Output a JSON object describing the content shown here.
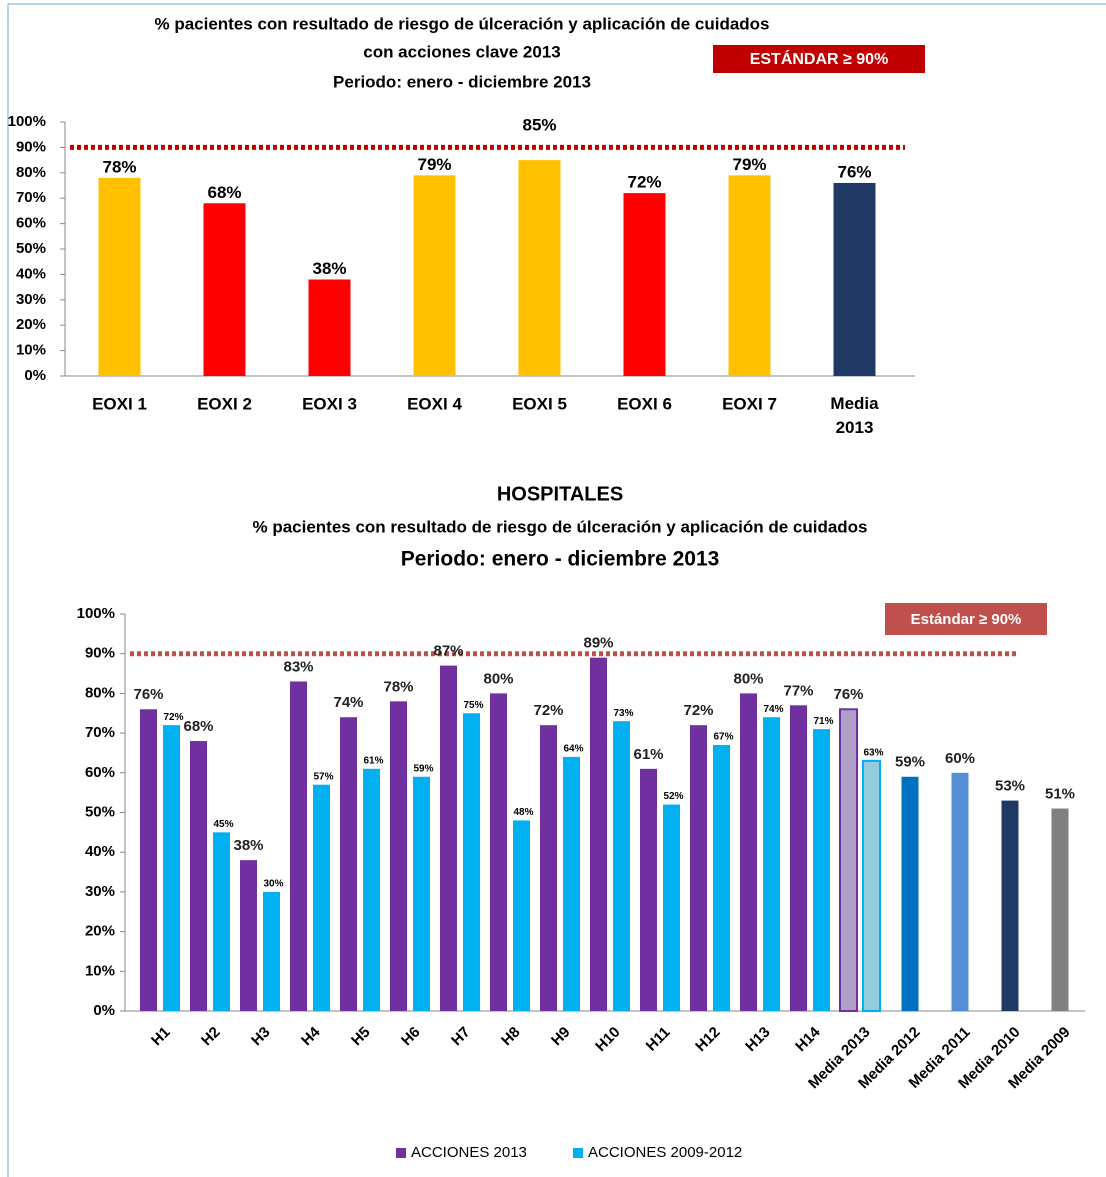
{
  "chart_data": [
    {
      "type": "bar",
      "title_lines": [
        "% pacientes con resultado de riesgo de úlceración y aplicación de cuidados",
        "con acciones clave 2013",
        "Periodo: enero - diciembre 2013"
      ],
      "categories": [
        "EOXI 1",
        "EOXI 2",
        "EOXI 3",
        "EOXI 4",
        "EOXI 5",
        "EOXI 6",
        "EOXI 7",
        "Media 2013"
      ],
      "values": [
        78,
        68,
        38,
        79,
        85,
        72,
        79,
        76
      ],
      "value_labels": [
        "78%",
        "68%",
        "38%",
        "79%",
        "85%",
        "72%",
        "79%",
        "76%"
      ],
      "colors": [
        "#FFC000",
        "#FF0000",
        "#FF0000",
        "#FFC000",
        "#FFC000",
        "#FF0000",
        "#FFC000",
        "#1F3864"
      ],
      "ylim": [
        0,
        100
      ],
      "yticks": [
        {
          "value": 0,
          "label": "0%"
        },
        {
          "value": 10,
          "label": "10%"
        },
        {
          "value": 20,
          "label": "20%"
        },
        {
          "value": 30,
          "label": "30%"
        },
        {
          "value": 40,
          "label": "40%"
        },
        {
          "value": 50,
          "label": "50%"
        },
        {
          "value": 60,
          "label": "60%"
        },
        {
          "value": 70,
          "label": "70%"
        },
        {
          "value": 80,
          "label": "80%"
        },
        {
          "value": 90,
          "label": "90%"
        },
        {
          "value": 100,
          "label": "100%"
        }
      ],
      "reference_line": {
        "value": 90,
        "label": "ESTÁNDAR ≥ 90%",
        "color": "#C00000"
      }
    },
    {
      "type": "grouped_bar",
      "title_lines": [
        "HOSPITALES",
        "%  pacientes con resultado de riesgo de úlceración y aplicación de cuidados",
        "Periodo: enero - diciembre 2013"
      ],
      "categories": [
        "H1",
        "H2",
        "H3",
        "H4",
        "H5",
        "H6",
        "H7",
        "H8",
        "H9",
        "H10",
        "H11",
        "H12",
        "H13",
        "H14",
        "Media 2013",
        "Media 2012",
        "Media 2011",
        "Media 2010",
        "Media 2009"
      ],
      "series": [
        {
          "name": "ACCIONES 2013",
          "color": "#7030A0",
          "values": [
            76,
            68,
            38,
            83,
            74,
            78,
            87,
            80,
            72,
            89,
            61,
            72,
            80,
            77,
            76,
            59,
            60,
            53,
            51
          ],
          "value_labels": [
            "76%",
            "68%",
            "38%",
            "83%",
            "74%",
            "78%",
            "87%",
            "80%",
            "72%",
            "89%",
            "61%",
            "72%",
            "80%",
            "77%",
            "76%",
            "59%",
            "60%",
            "53%",
            "51%"
          ],
          "colors": [
            "#7030A0",
            "#7030A0",
            "#7030A0",
            "#7030A0",
            "#7030A0",
            "#7030A0",
            "#7030A0",
            "#7030A0",
            "#7030A0",
            "#7030A0",
            "#7030A0",
            "#7030A0",
            "#7030A0",
            "#7030A0",
            "#B1A0C7",
            "#0070C0",
            "#558ED5",
            "#1F3864",
            "#808080"
          ]
        },
        {
          "name": "ACCIONES 2009-2012",
          "color": "#00B0F0",
          "values": [
            72,
            45,
            30,
            57,
            61,
            59,
            75,
            48,
            64,
            73,
            52,
            67,
            74,
            71,
            63,
            null,
            null,
            null,
            null
          ],
          "value_labels": [
            "72%",
            "45%",
            "30%",
            "57%",
            "61%",
            "59%",
            "75%",
            "48%",
            "64%",
            "73%",
            "52%",
            "67%",
            "74%",
            "71%",
            "63%",
            null,
            null,
            null,
            null
          ],
          "colors": [
            "#00B0F0",
            "#00B0F0",
            "#00B0F0",
            "#00B0F0",
            "#00B0F0",
            "#00B0F0",
            "#00B0F0",
            "#00B0F0",
            "#00B0F0",
            "#00B0F0",
            "#00B0F0",
            "#00B0F0",
            "#00B0F0",
            "#00B0F0",
            "#93CDDD",
            null,
            null,
            null,
            null
          ]
        }
      ],
      "ylim": [
        0,
        100
      ],
      "yticks": [
        {
          "value": 0,
          "label": "0%"
        },
        {
          "value": 10,
          "label": "10%"
        },
        {
          "value": 20,
          "label": "20%"
        },
        {
          "value": 30,
          "label": "30%"
        },
        {
          "value": 40,
          "label": "40%"
        },
        {
          "value": 50,
          "label": "50%"
        },
        {
          "value": 60,
          "label": "60%"
        },
        {
          "value": 70,
          "label": "70%"
        },
        {
          "value": 80,
          "label": "80%"
        },
        {
          "value": 90,
          "label": "90%"
        },
        {
          "value": 100,
          "label": "100%"
        }
      ],
      "reference_line": {
        "value": 90,
        "label": "Estándar ≥ 90%",
        "color": "#C0504D"
      },
      "legend": "bottom"
    }
  ]
}
